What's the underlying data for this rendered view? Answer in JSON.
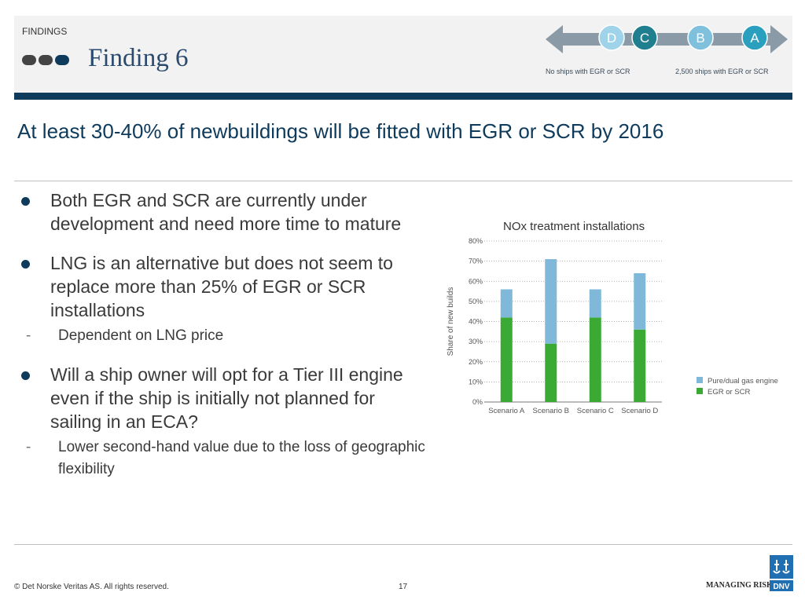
{
  "header": {
    "section": "FINDINGS",
    "title": "Finding 6"
  },
  "scale": {
    "letters": [
      "D",
      "C",
      "B",
      "A"
    ],
    "left_caption": "No ships with EGR or SCR",
    "right_caption": "2,500 ships with EGR or SCR"
  },
  "subtitle": "At least 30-40% of newbuildings will be fitted with EGR or SCR by 2016",
  "bullets": [
    {
      "text": "Both EGR and SCR are currently under development and need more time to mature"
    },
    {
      "text": "LNG is an alternative but does not seem to replace more than 25% of EGR or SCR installations",
      "sub": "Dependent on LNG price"
    },
    {
      "text": "Will a ship owner will opt for a Tier III engine even if the ship is initially not planned for sailing in an ECA?",
      "sub": "Lower second-hand value due to the loss of geographic flexibility"
    }
  ],
  "chart_data": {
    "type": "bar",
    "stacked": true,
    "title": "NOx treatment installations",
    "ylabel": "Share of new builds",
    "ylim": [
      0,
      80
    ],
    "yticks": [
      "0%",
      "10%",
      "20%",
      "30%",
      "40%",
      "50%",
      "60%",
      "70%",
      "80%"
    ],
    "categories": [
      "Scenario A",
      "Scenario B",
      "Scenario C",
      "Scenario D"
    ],
    "series": [
      {
        "name": "EGR or SCR",
        "color": "#3aaa35",
        "values": [
          42,
          29,
          42,
          36
        ]
      },
      {
        "name": "Pure/dual gas engine",
        "color": "#7fb8d8",
        "values": [
          14,
          42,
          14,
          28
        ]
      }
    ],
    "legend_position": "bottom-right",
    "grid": true
  },
  "footer": {
    "copyright": "© Det Norske Veritas AS. All rights reserved.",
    "page": "17",
    "brand": "MANAGING RISK",
    "logo_text": "DNV"
  }
}
